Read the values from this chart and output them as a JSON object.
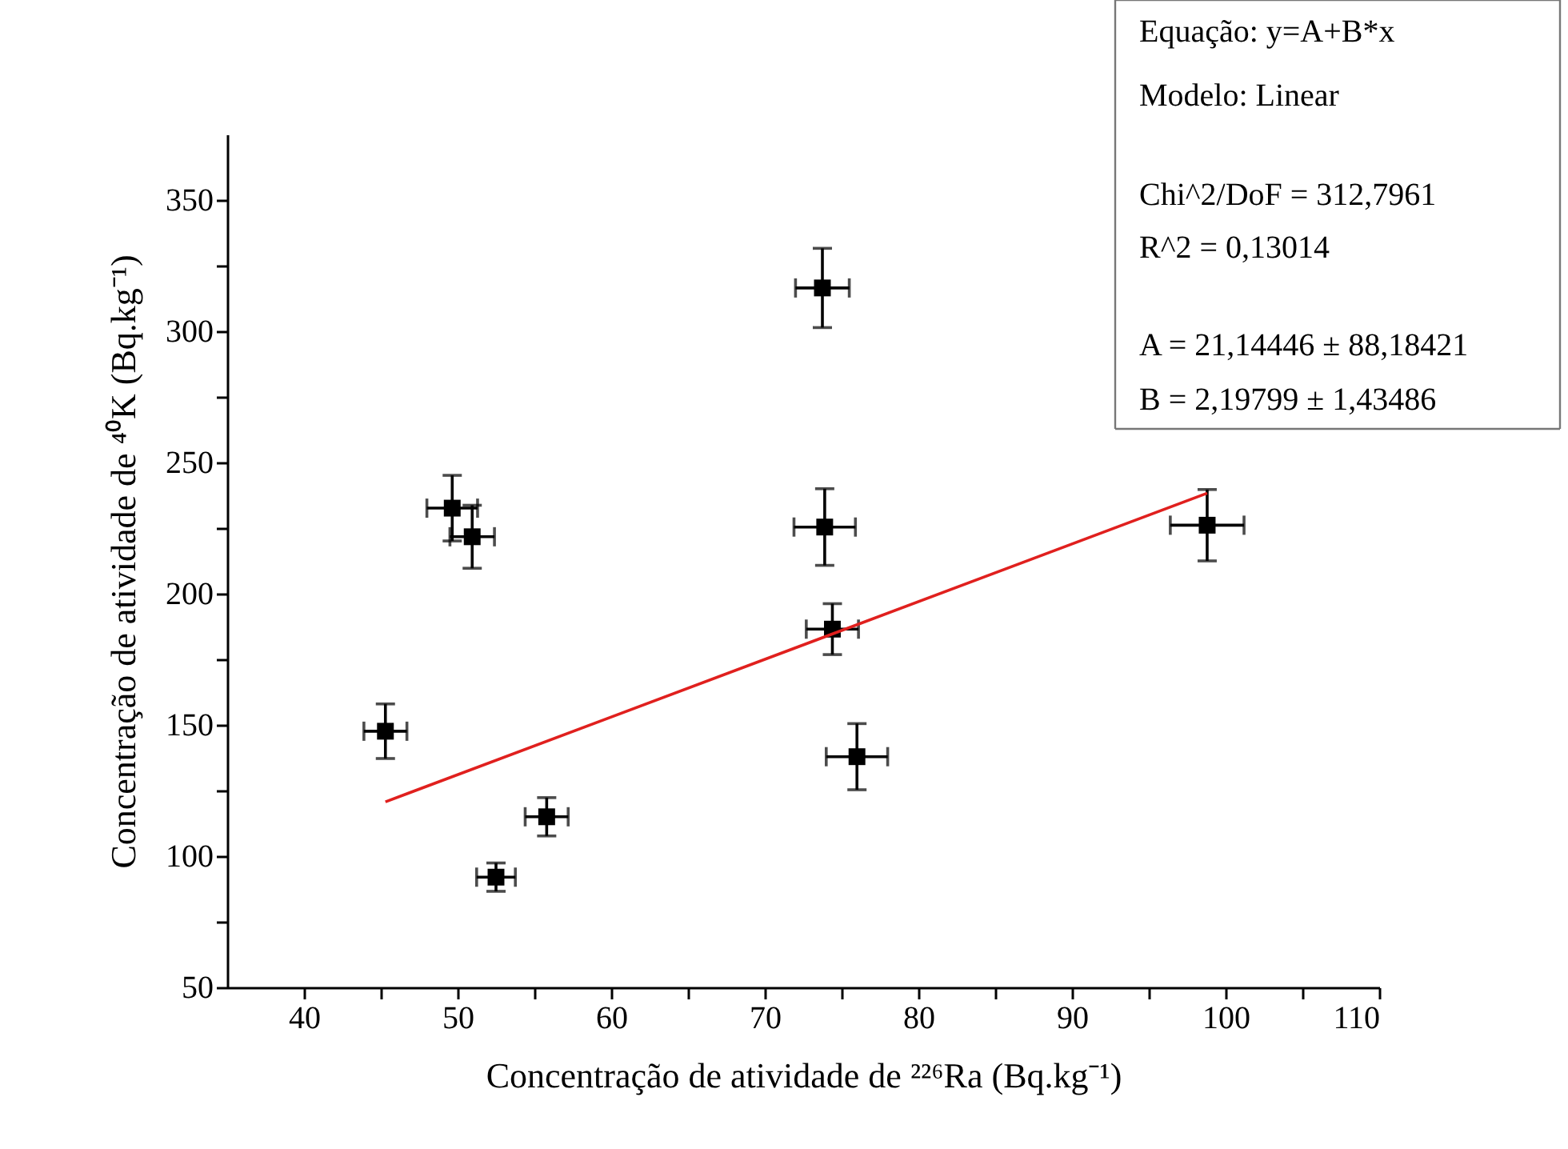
{
  "chart_data": {
    "type": "scatter",
    "xlabel": "Concentração de atividade de ²²⁶Ra (Bq.kg⁻¹)",
    "ylabel": "Concentração de atividade de ⁴⁰K (Bq.kg⁻¹)",
    "annotations": [
      "Equação: y=A+B*x",
      "Modelo: Linear",
      "Chi^2/DoF = 312,7961",
      "R^2 = 0,13014",
      "A = 21,14446 ± 88,18421",
      "B = 2,19799   ± 1,43486"
    ],
    "xlim": [
      35,
      110
    ],
    "ylim": [
      50,
      375
    ],
    "xticks": [
      40,
      {
        "value": 45,
        "label": null
      },
      50,
      {
        "value": 55,
        "label": null
      },
      60,
      {
        "value": 65,
        "label": null
      },
      70,
      {
        "value": 75,
        "label": null
      },
      80,
      {
        "value": 85,
        "label": null
      },
      90,
      {
        "value": 95,
        "label": null
      },
      100,
      {
        "value": 105,
        "label": null
      },
      110
    ],
    "yticks": [
      50,
      {
        "value": 75,
        "label": null
      },
      100,
      {
        "value": 125,
        "label": null
      },
      150,
      {
        "value": 175,
        "label": null
      },
      200,
      {
        "value": 225,
        "label": null
      },
      250,
      {
        "value": 275,
        "label": null
      },
      300,
      {
        "value": 325,
        "label": null
      },
      350
    ],
    "grid": false,
    "series": [
      {
        "color": "#000000",
        "marker": "square",
        "x": [
          45.3,
          49.65,
          50.95,
          52.5,
          55.8,
          73.75,
          73.9,
          74.4,
          76.0,
          98.8
        ],
        "values": [
          147.6,
          232.6,
          221.7,
          92,
          115,
          316.5,
          225.4,
          186.5,
          137.9,
          226.1
        ],
        "errors": [
          10.4,
          12.5,
          12,
          5.4,
          7.3,
          15.1,
          14.6,
          9.7,
          12.6,
          13.6
        ],
        "xerrors": [
          1.4,
          1.65,
          1.45,
          1.26,
          1.4,
          1.75,
          2.0,
          1.7,
          2.0,
          2.4
        ]
      },
      {
        "type": "line",
        "color": "#e0201e",
        "line_style": "solid",
        "marker": "none",
        "x": [
          45.3,
          98.8
        ],
        "values": [
          120.7,
          238.3
        ]
      }
    ]
  }
}
